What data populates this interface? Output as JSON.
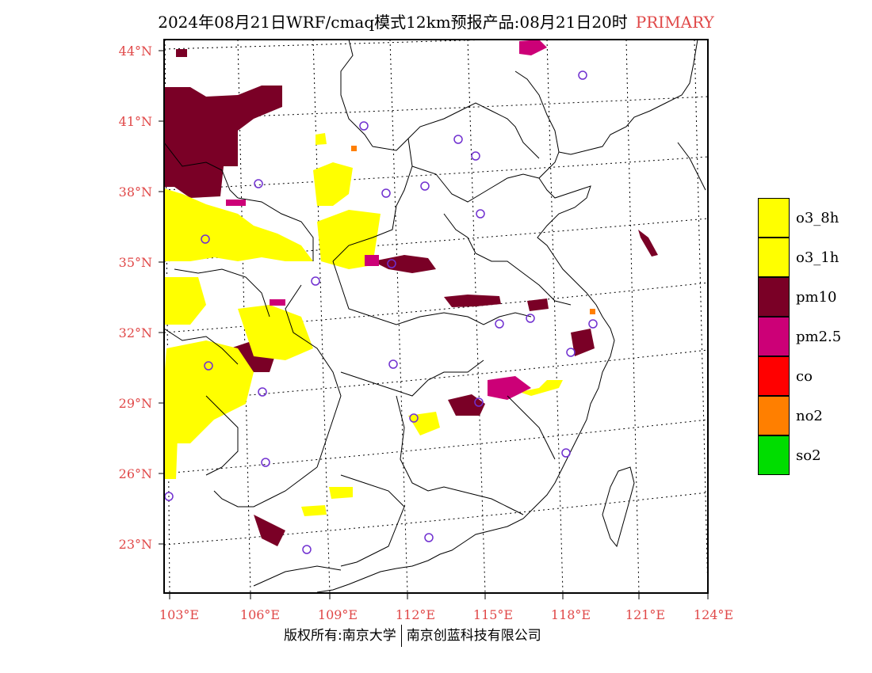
{
  "title": {
    "main": "2024年08月21日WRF/cmaq模式12km预报产品:08月21日20时",
    "tag": "PRIMARY"
  },
  "axes": {
    "lat_labels": [
      "44°N",
      "41°N",
      "38°N",
      "35°N",
      "32°N",
      "29°N",
      "26°N",
      "23°N"
    ],
    "lon_labels": [
      "103°E",
      "106°E",
      "109°E",
      "112°E",
      "115°E",
      "118°E",
      "121°E",
      "124°E"
    ]
  },
  "legend": [
    {
      "label": "o3_8h",
      "color": "#ffff00"
    },
    {
      "label": "o3_1h",
      "color": "#ffff00"
    },
    {
      "label": "pm10",
      "color": "#7a0026"
    },
    {
      "label": "pm2.5",
      "color": "#cc0077"
    },
    {
      "label": "co",
      "color": "#ff0000"
    },
    {
      "label": "no2",
      "color": "#ff7f00"
    },
    {
      "label": "so2",
      "color": "#00dd00"
    }
  ],
  "colors": {
    "o3": "#ffff00",
    "pm10": "#7a0026",
    "pm25": "#cc0077",
    "no2": "#ff7f00",
    "station": "#7030d0",
    "axis_label": "#e04848"
  },
  "footer": {
    "left": "版权所有:南京大学",
    "right": "南京创蓝科技有限公司"
  }
}
